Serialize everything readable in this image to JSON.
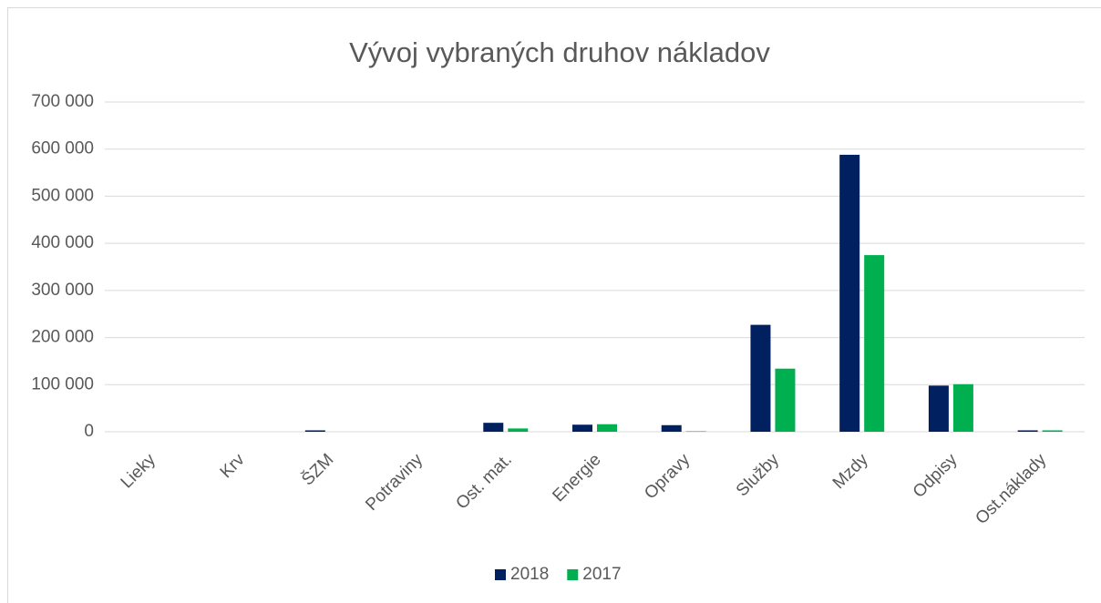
{
  "chart_data": {
    "type": "bar",
    "title": "Vývoj vybraných druhov nákladov",
    "categories": [
      "Lieky",
      "Krv",
      "ŠZM",
      "Potraviny",
      "Ost. mat.",
      "Energie",
      "Opravy",
      "Služby",
      "Mzdy",
      "Odpisy",
      "Ost.náklady"
    ],
    "series": [
      {
        "name": "2018",
        "color": "#002060",
        "values": [
          0,
          0,
          3000,
          0,
          19000,
          15000,
          14000,
          227000,
          588000,
          98000,
          3000
        ]
      },
      {
        "name": "2017",
        "color": "#00b050",
        "values": [
          0,
          0,
          0,
          0,
          7000,
          16000,
          1000,
          134000,
          375000,
          101000,
          3000
        ]
      }
    ],
    "ylim": [
      0,
      700000
    ],
    "yticks": [
      0,
      {
        "value": 100000,
        "label": "100 000"
      },
      {
        "value": 200000,
        "label": "200 000"
      },
      {
        "value": 300000,
        "label": "300 000"
      },
      {
        "value": 400000,
        "label": "400 000"
      },
      {
        "value": 500000,
        "label": "500 000"
      },
      {
        "value": 600000,
        "label": "600 000"
      },
      {
        "value": 700000,
        "label": "700 000"
      }
    ],
    "grid": true,
    "legend": "bottom"
  }
}
